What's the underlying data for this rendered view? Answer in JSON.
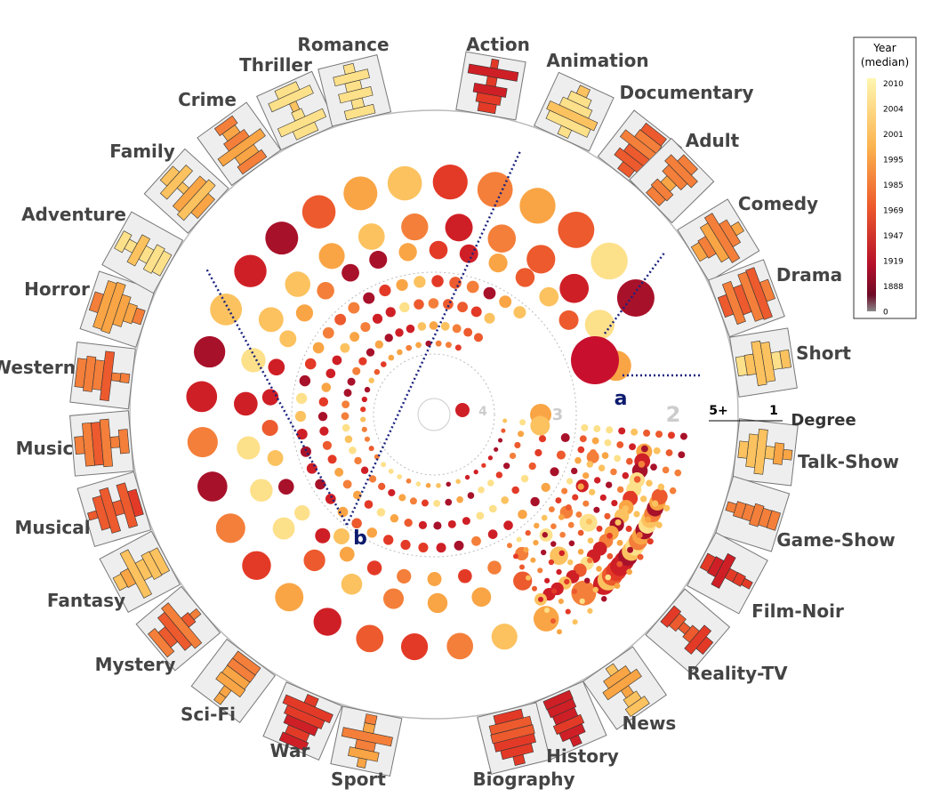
{
  "genres": [
    "Action",
    "Animation",
    "Documentary",
    "Adult",
    "Comedy",
    "Drama",
    "Short",
    "Talk-Show",
    "Game-Show",
    "Film-Noir",
    "Reality-TV",
    "News",
    "History",
    "Biography",
    "Sport",
    "War",
    "Sci-Fi",
    "Mystery",
    "Fantasy",
    "Musical",
    "Music",
    "Western",
    "Horror",
    "Adventure",
    "Family",
    "Crime",
    "Thriller",
    "Romance"
  ],
  "legend": {
    "title": "Year",
    "subtitle": "(median)",
    "ticks": [
      2010,
      2004,
      2001,
      1995,
      1985,
      1969,
      1947,
      1919,
      1888,
      0
    ]
  },
  "degree": {
    "label": "Degree",
    "high": "5+",
    "low": "1"
  },
  "annotations": {
    "a": "a",
    "b": "b"
  },
  "rings": [
    "2",
    "3",
    "4"
  ]
}
